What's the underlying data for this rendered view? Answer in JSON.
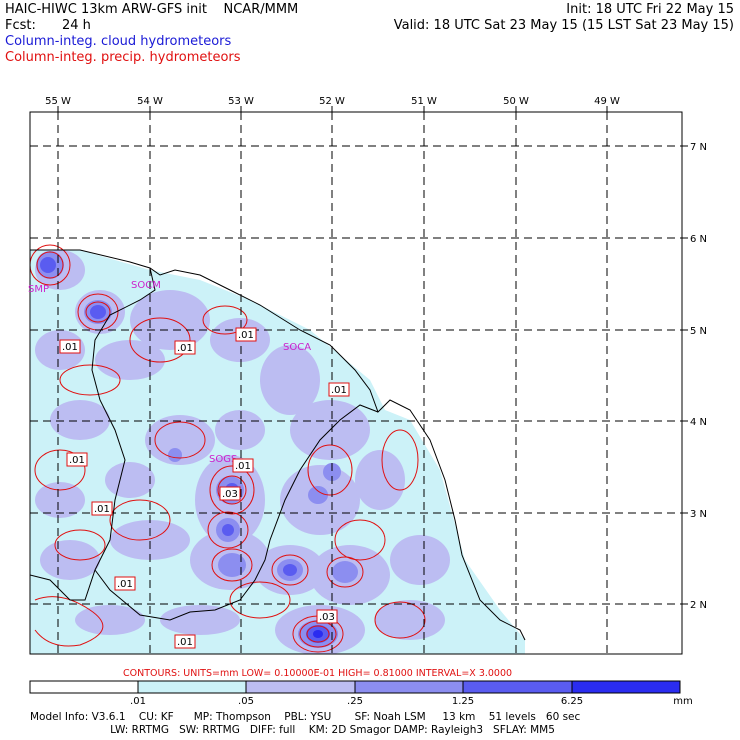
{
  "header": {
    "title_left": "HAIC-HIWC 13km ARW-GFS init    NCAR/MMM",
    "init": "Init: 18 UTC Fri 22 May 15",
    "fcst_label": "Fcst:",
    "fcst_value": "24 h",
    "valid": "Valid: 18 UTC Sat 23 May 15 (15 LST Sat 23 May 15)",
    "legend_cloud": "Column-integ. cloud hydrometeors",
    "legend_precip": "Column-integ. precip. hydrometeors",
    "legend_cloud_color": "#1a1ad6",
    "legend_precip_color": "#e01010"
  },
  "map": {
    "lon_labels": [
      "55 W",
      "54 W",
      "53 W",
      "52 W",
      "51 W",
      "50 W",
      "49 W"
    ],
    "lat_labels": [
      "7 N",
      "6 N",
      "5 N",
      "4 N",
      "3 N",
      "2 N"
    ],
    "station_labels": [
      "SMP",
      "SOCM",
      "SOCA",
      "SOGS"
    ],
    "station_color": "#cc22cc",
    "contour_labels": [
      ".01",
      ".01",
      ".01",
      ".01",
      ".01",
      ".01",
      ".03",
      ".01",
      ".01",
      ".01",
      ".03",
      ".01"
    ],
    "contour_color": "#e01010"
  },
  "contours_info": "CONTOURS:  UNITS=mm  LOW= 0.10000E-01  HIGH= 0.81000       INTERVAL=X  3.0000",
  "colorbar": {
    "ticks": [
      ".01",
      ".05",
      ".25",
      "1.25",
      "6.25"
    ],
    "unit": "mm",
    "colors": [
      "#ffffff",
      "#ccf2f8",
      "#bcbdf2",
      "#8c8ef0",
      "#5a5cf0",
      "#2a2cf0",
      "#0a0ae8"
    ]
  },
  "footer": {
    "line1": "Model Info: V3.6.1    CU: KF      MP: Thompson    PBL: YSU       SF: Noah LSM     13 km    51 levels   60 sec",
    "line2": "                        LW: RRTMG   SW: RRTMG   DIFF: full    KM: 2D Smagor DAMP: Rayleigh3   SFLAY: MM5"
  }
}
